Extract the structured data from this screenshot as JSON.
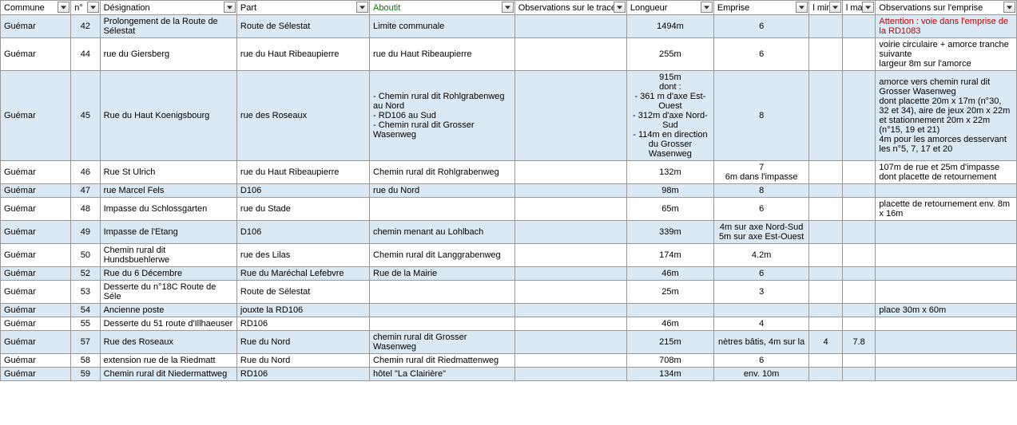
{
  "headers": [
    {
      "key": "commune",
      "label": "Commune",
      "cls": "col-commune"
    },
    {
      "key": "n",
      "label": "n°",
      "cls": "col-n"
    },
    {
      "key": "desig",
      "label": "Désignation",
      "cls": "col-desig"
    },
    {
      "key": "part",
      "label": "Part",
      "cls": "col-part"
    },
    {
      "key": "aboutit",
      "label": "Aboutit",
      "cls": "col-aboutit",
      "active": true
    },
    {
      "key": "obstr",
      "label": "Observations sur le tracé",
      "cls": "col-obstr"
    },
    {
      "key": "long",
      "label": "Longueur",
      "cls": "col-long"
    },
    {
      "key": "empr",
      "label": "Emprise",
      "cls": "col-empr"
    },
    {
      "key": "lmini",
      "label": "l mini",
      "cls": "col-lmini"
    },
    {
      "key": "lmaxi",
      "label": "l maxi",
      "cls": "col-lmaxi"
    },
    {
      "key": "obsemp",
      "label": "Observations sur l'emprise",
      "cls": "col-obsemp"
    }
  ],
  "rows": [
    {
      "alt": true,
      "commune": "Guémar",
      "n": "42",
      "desig": "Prolongement de la Route de Sélestat",
      "part": "Route de Sélestat",
      "aboutit": "Limite communale",
      "obstr": "",
      "long": "1494m",
      "empr": "6",
      "lmini": "",
      "lmaxi": "",
      "obsemp": "Attention : voie dans l'emprise de la RD1083",
      "obsemp_red": true
    },
    {
      "alt": false,
      "commune": "Guémar",
      "n": "44",
      "desig": "rue du Giersberg",
      "part": "rue du Haut Ribeaupierre",
      "aboutit": "rue du Haut Ribeaupierre",
      "obstr": "",
      "long": "255m",
      "empr": "6",
      "lmini": "",
      "lmaxi": "",
      "obsemp": "voirie circulaire + amorce tranche suivante\nlargeur 8m sur l'amorce"
    },
    {
      "alt": true,
      "commune": "Guémar",
      "n": "45",
      "desig": "Rue du Haut Koenigsbourg",
      "part": "rue des Roseaux",
      "aboutit": "- Chemin rural dit Rohlgrabenweg au Nord\n- RD106 au Sud\n- Chemin rural dit Grosser Wasenweg",
      "obstr": "",
      "long": "915m\ndont :\n- 361 m d'axe Est-Ouest\n- 312m d'axe Nord-Sud\n- 114m en direction du Grosser Wasenweg",
      "empr": "8",
      "lmini": "",
      "lmaxi": "",
      "obsemp": "amorce vers chemin rural dit Grosser Wasenweg\ndont placette 20m x 17m (n°30, 32 et 34), aire de jeux 20m x 22m et stationnement 20m x 22m (n°15, 19 et 21)\n4m pour les amorces desservant les n°5, 7, 17 et 20"
    },
    {
      "alt": false,
      "commune": "Guémar",
      "n": "46",
      "desig": "Rue St Ulrich",
      "part": "rue du Haut Ribeaupierre",
      "aboutit": "Chemin rural dit Rohlgrabenweg",
      "obstr": "",
      "long": "132m",
      "empr": "7\n6m dans l'impasse",
      "lmini": "",
      "lmaxi": "",
      "obsemp": "107m de rue et 25m d'impasse dont placette de retournement"
    },
    {
      "alt": true,
      "commune": "Guémar",
      "n": "47",
      "desig": "rue Marcel Fels",
      "part": "D106",
      "aboutit": "rue du Nord",
      "obstr": "",
      "long": "98m",
      "empr": "8",
      "lmini": "",
      "lmaxi": "",
      "obsemp": ""
    },
    {
      "alt": false,
      "commune": "Guémar",
      "n": "48",
      "desig": "Impasse du Schlossgarten",
      "part": "rue du Stade",
      "aboutit": "",
      "obstr": "",
      "long": "65m",
      "empr": "6",
      "lmini": "",
      "lmaxi": "",
      "obsemp": "placette de retournement env. 8m x 16m"
    },
    {
      "alt": true,
      "commune": "Guémar",
      "n": "49",
      "desig": "Impasse de l'Etang",
      "part": "D106",
      "aboutit": "chemin menant au Lohlbach",
      "obstr": "",
      "long": "339m",
      "empr": "4m sur axe Nord-Sud\n5m sur axe Est-Ouest",
      "lmini": "",
      "lmaxi": "",
      "obsemp": ""
    },
    {
      "alt": false,
      "commune": "Guémar",
      "n": "50",
      "desig": "Chemin rural dit Hundsbuehlerwe",
      "part": "rue des Lilas",
      "aboutit": "Chemin rural dit Langgrabenweg",
      "obstr": "",
      "long": "174m",
      "empr": "4.2m",
      "lmini": "",
      "lmaxi": "",
      "obsemp": ""
    },
    {
      "alt": true,
      "commune": "Guémar",
      "n": "52",
      "desig": "Rue du 6 Décembre",
      "part": "Rue du Maréchal Lefebvre",
      "aboutit": "Rue de la Mairie",
      "obstr": "",
      "long": "46m",
      "empr": "6",
      "lmini": "",
      "lmaxi": "",
      "obsemp": ""
    },
    {
      "alt": false,
      "commune": "Guémar",
      "n": "53",
      "desig": "Desserte du n°18C Route de Séle",
      "part": "Route de Sélestat",
      "aboutit": "",
      "obstr": "",
      "long": "25m",
      "empr": "3",
      "lmini": "",
      "lmaxi": "",
      "obsemp": ""
    },
    {
      "alt": true,
      "commune": "Guémar",
      "n": "54",
      "desig": "Ancienne poste",
      "part": "jouxte la RD106",
      "aboutit": "",
      "obstr": "",
      "long": "",
      "empr": "",
      "lmini": "",
      "lmaxi": "",
      "obsemp": "place 30m x 60m"
    },
    {
      "alt": false,
      "commune": "Guémar",
      "n": "55",
      "desig": "Desserte du 51 route d'Illhaeuser",
      "part": "RD106",
      "aboutit": "",
      "obstr": "",
      "long": "46m",
      "empr": "4",
      "lmini": "",
      "lmaxi": "",
      "obsemp": ""
    },
    {
      "alt": true,
      "commune": "Guémar",
      "n": "57",
      "desig": "Rue des Roseaux",
      "part": "Rue du Nord",
      "aboutit": "chemin rural dit Grosser Wasenweg",
      "obstr": "",
      "long": "215m",
      "empr": "nètres bâtis, 4m sur la",
      "lmini": "4",
      "lmaxi": "7.8",
      "obsemp": ""
    },
    {
      "alt": false,
      "commune": "Guémar",
      "n": "58",
      "desig": "extension rue de la Riedmatt",
      "part": "Rue du Nord",
      "aboutit": "Chemin rural dit Riedmattenweg",
      "obstr": "",
      "long": "708m",
      "empr": "6",
      "lmini": "",
      "lmaxi": "",
      "obsemp": ""
    },
    {
      "alt": true,
      "commune": "Guémar",
      "n": "59",
      "desig": "Chemin rural dit Niedermattweg",
      "part": "RD106",
      "aboutit": "hôtel \"La Clairière\"",
      "obstr": "",
      "long": "134m",
      "empr": "env. 10m",
      "lmini": "",
      "lmaxi": "",
      "obsemp": ""
    }
  ],
  "center_cols": [
    "n",
    "long",
    "empr",
    "lmini",
    "lmaxi"
  ]
}
